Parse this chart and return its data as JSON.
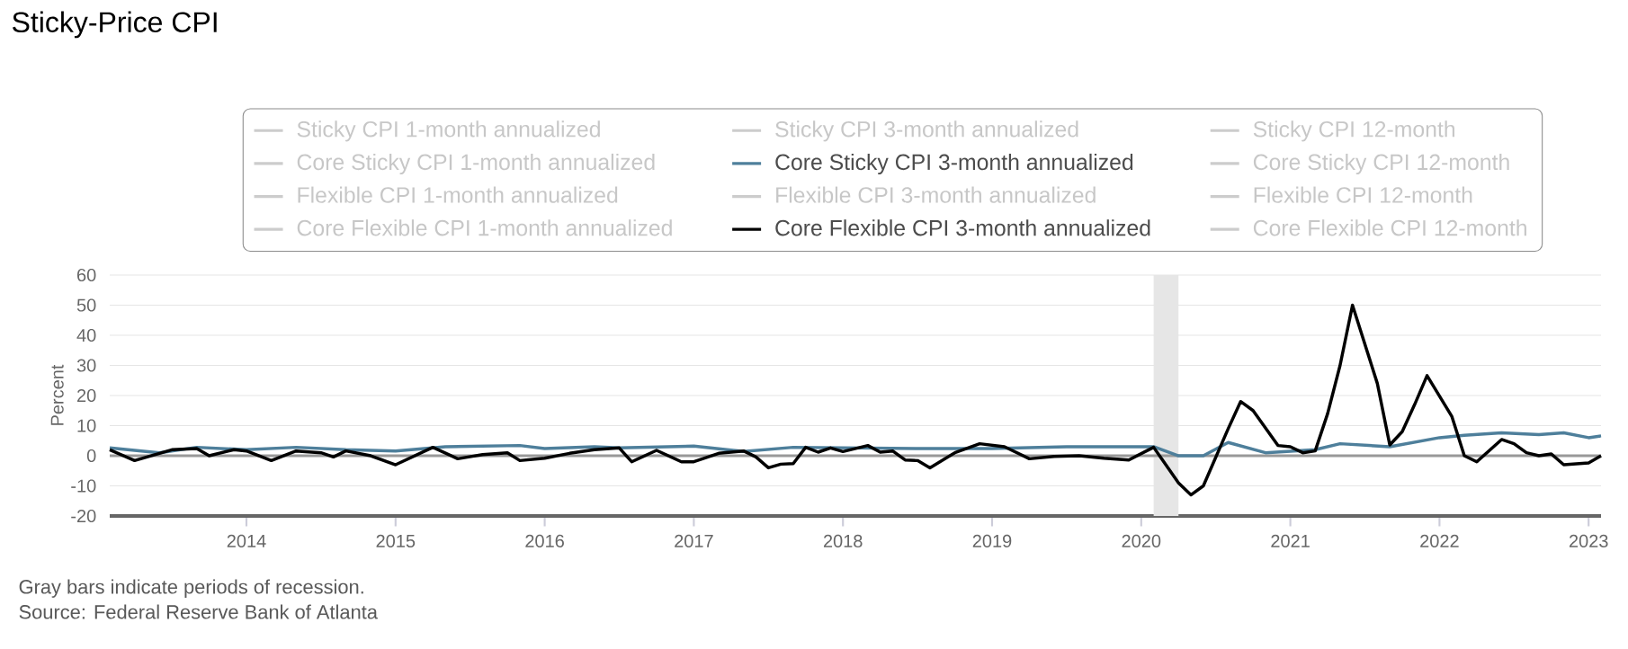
{
  "chart_data": {
    "type": "line",
    "title": "Sticky-Price CPI",
    "ylabel": "Percent",
    "xlim": [
      "2013-02",
      "2023-02"
    ],
    "ylim": [
      -20,
      60
    ],
    "xticks": [
      "2014",
      "2015",
      "2016",
      "2017",
      "2018",
      "2019",
      "2020",
      "2021",
      "2022",
      "2023"
    ],
    "yticks": [
      -20,
      -10,
      0,
      10,
      20,
      30,
      40,
      50,
      60
    ],
    "grid": "y",
    "legend": "top",
    "line_style": "solid",
    "marker": "none",
    "bands": [
      {
        "axis": "x",
        "from": "2020-02",
        "to": "2020-04",
        "color": "#e6e6e6"
      }
    ],
    "ref_lines": [
      {
        "axis": "y",
        "value": 0,
        "color": "#999999"
      }
    ],
    "annotations": [
      "Gray bars indicate periods of recession.",
      "Source: Federal Reserve Bank of Atlanta"
    ],
    "series": [
      {
        "name": "Sticky CPI 1-month annualized",
        "color": "#cccccc"
      },
      {
        "name": "Sticky CPI 3-month annualized",
        "color": "#cccccc"
      },
      {
        "name": "Sticky CPI 12-month",
        "color": "#cccccc"
      },
      {
        "name": "Core Sticky CPI 1-month annualized",
        "color": "#cccccc"
      },
      {
        "name": "Core Sticky CPI 3-month annualized",
        "color": "#4e7f9b",
        "x": [
          "2013-02",
          "2013-06",
          "2013-09",
          "2014-01",
          "2014-05",
          "2014-09",
          "2015-01",
          "2015-05",
          "2015-11",
          "2016-01",
          "2016-05",
          "2016-07",
          "2017-01",
          "2017-05",
          "2017-09",
          "2018-07",
          "2019-01",
          "2019-07",
          "2020-02",
          "2020-04",
          "2020-06",
          "2020-08",
          "2020-11",
          "2021-03",
          "2021-05",
          "2021-09",
          "2022-01",
          "2022-03",
          "2022-06",
          "2022-09",
          "2022-11",
          "2023-01",
          "2023-02"
        ],
        "values": [
          2.6,
          1,
          2.8,
          2,
          2.8,
          2,
          1.6,
          3,
          3.4,
          2.4,
          3,
          2.6,
          3.2,
          1.4,
          2.8,
          2.4,
          2.4,
          3,
          3,
          0,
          0,
          4.4,
          1,
          2,
          4,
          3,
          6,
          6.8,
          7.6,
          7,
          7.6,
          6,
          6.6
        ]
      },
      {
        "name": "Core Sticky CPI 12-month",
        "color": "#cccccc"
      },
      {
        "name": "Flexible CPI 1-month annualized",
        "color": "#cccccc"
      },
      {
        "name": "Flexible CPI 3-month annualized",
        "color": "#cccccc"
      },
      {
        "name": "Flexible CPI 12-month",
        "color": "#cccccc"
      },
      {
        "name": "Core Flexible CPI 1-month annualized",
        "color": "#cccccc"
      },
      {
        "name": "Core Flexible CPI 3-month annualized",
        "color": "#000000",
        "x": [
          "2013-02",
          "2013-04",
          "2013-07",
          "2013-09",
          "2013-10",
          "2013-12",
          "2014-01",
          "2014-03",
          "2014-05",
          "2014-07",
          "2014-08",
          "2014-09",
          "2014-11",
          "2015-01",
          "2015-04",
          "2015-06",
          "2015-08",
          "2015-10",
          "2015-11",
          "2016-01",
          "2016-03",
          "2016-05",
          "2016-07",
          "2016-08",
          "2016-10",
          "2016-12",
          "2017-01",
          "2017-03",
          "2017-05",
          "2017-06",
          "2017-07",
          "2017-08",
          "2017-09",
          "2017-10",
          "2017-11",
          "2017-12",
          "2018-01",
          "2018-03",
          "2018-04",
          "2018-05",
          "2018-06",
          "2018-07",
          "2018-08",
          "2018-10",
          "2018-12",
          "2019-02",
          "2019-04",
          "2019-06",
          "2019-08",
          "2019-10",
          "2019-12",
          "2020-02",
          "2020-04",
          "2020-05",
          "2020-06",
          "2020-08",
          "2020-09",
          "2020-10",
          "2020-12",
          "2021-01",
          "2021-02",
          "2021-03",
          "2021-04",
          "2021-05",
          "2021-06",
          "2021-08",
          "2021-09",
          "2021-10",
          "2021-11",
          "2021-12",
          "2022-02",
          "2022-03",
          "2022-04",
          "2022-06",
          "2022-07",
          "2022-08",
          "2022-09",
          "2022-10",
          "2022-11",
          "2023-01",
          "2023-02"
        ],
        "values": [
          2,
          -1.6,
          2,
          2.4,
          0,
          2,
          1.6,
          -1.6,
          1.6,
          1,
          -0.4,
          1.6,
          0,
          -3,
          2.8,
          -1,
          0.4,
          1,
          -1.6,
          -0.8,
          0.8,
          2,
          2.6,
          -2,
          1.8,
          -2,
          -2,
          0.8,
          1.6,
          -0.4,
          -4,
          -2.8,
          -2.6,
          2.8,
          1.2,
          2.6,
          1.4,
          3.4,
          1.2,
          1.6,
          -1.4,
          -1.6,
          -4,
          1,
          4,
          3,
          -1,
          -0.2,
          0,
          -0.8,
          -1.4,
          2.8,
          -9,
          -13,
          -10,
          9,
          18,
          15,
          3.4,
          3,
          1,
          1.6,
          14,
          30,
          50,
          24,
          3.6,
          8,
          17,
          26.6,
          13,
          0,
          -2,
          5.4,
          4,
          1,
          0,
          0.6,
          -3,
          -2.4,
          0
        ]
      },
      {
        "name": "Core Flexible CPI 12-month",
        "color": "#cccccc"
      }
    ]
  }
}
